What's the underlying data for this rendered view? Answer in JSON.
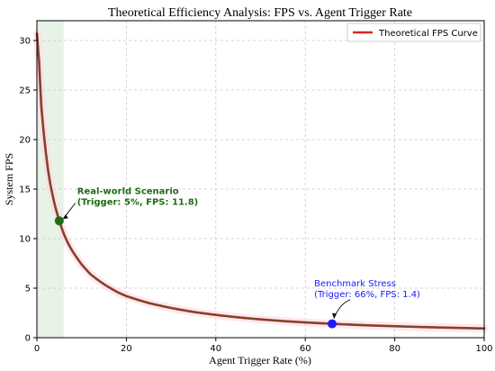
{
  "chart_data": {
    "type": "line",
    "title": "Theoretical Efficiency Analysis: FPS vs. Agent Trigger Rate",
    "xlabel": "Agent Trigger Rate (%)",
    "ylabel": "System FPS",
    "xlim": [
      0,
      100
    ],
    "ylim": [
      0,
      32
    ],
    "xticks": [
      0,
      20,
      40,
      60,
      80,
      100
    ],
    "yticks": [
      0,
      5,
      10,
      15,
      20,
      25,
      30
    ],
    "grid": true,
    "legend_position": "top-right",
    "series": [
      {
        "name": "Theoretical FPS Curve",
        "color": "#d62728",
        "overlay_color": "#6b4c2a",
        "x": [
          0.01,
          0.5,
          1,
          1.5,
          2,
          2.5,
          3,
          4,
          5,
          6,
          7,
          8,
          10,
          12,
          15,
          18,
          20,
          25,
          30,
          35,
          40,
          45,
          50,
          55,
          60,
          66,
          70,
          75,
          80,
          85,
          90,
          95,
          100
        ],
        "y": [
          30.7,
          27.8,
          23.3,
          20.8,
          18.7,
          16.9,
          15.5,
          13.4,
          11.8,
          10.5,
          9.5,
          8.7,
          7.4,
          6.4,
          5.4,
          4.6,
          4.2,
          3.5,
          3.0,
          2.6,
          2.3,
          2.05,
          1.85,
          1.68,
          1.54,
          1.4,
          1.32,
          1.23,
          1.16,
          1.09,
          1.03,
          0.98,
          0.93
        ]
      }
    ],
    "annotations": [
      {
        "label_line1": "Real-world Scenario",
        "label_line2": "(Trigger: 5%, FPS: 11.8)",
        "x": 5,
        "y": 11.8,
        "text_x": 9,
        "text_y": 14.5,
        "color": "#1b6e12"
      },
      {
        "label_line1": "Benchmark Stress",
        "label_line2": "(Trigger: 66%, FPS: 1.4)",
        "x": 66,
        "y": 1.4,
        "text_x": 62,
        "text_y": 5.2,
        "color": "#1a1aff"
      }
    ],
    "highlight_region": {
      "x": [
        0,
        6
      ],
      "color": "#e8f3e8"
    }
  }
}
